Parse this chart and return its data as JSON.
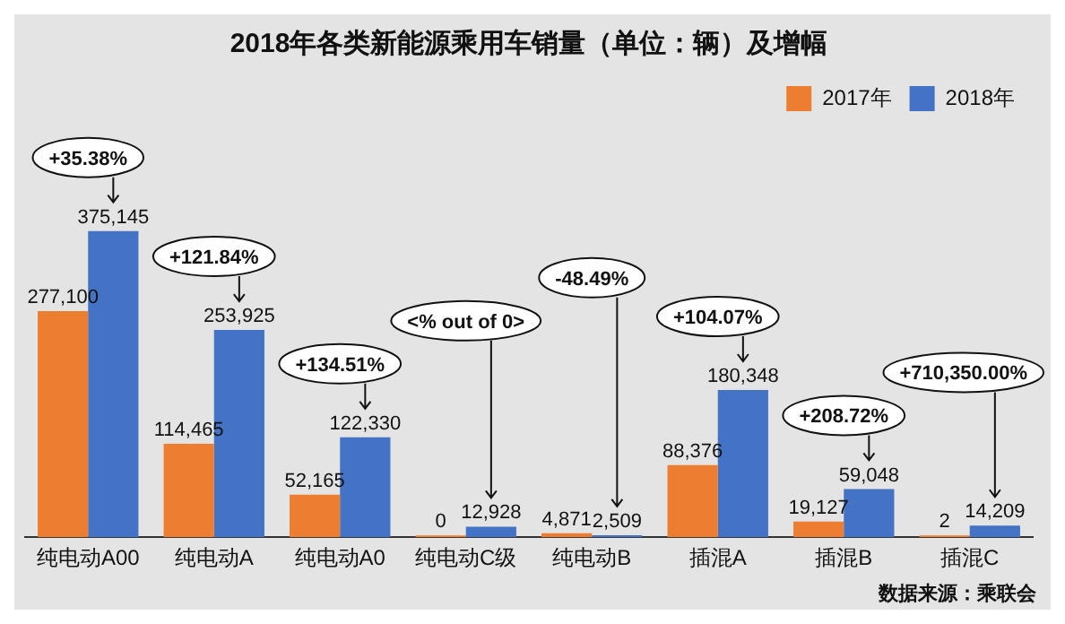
{
  "chart_data": {
    "type": "bar",
    "title": "2018年各类新能源乘用车销量（单位：辆）及增幅",
    "categories": [
      "纯电动A00",
      "纯电动A",
      "纯电动A0",
      "纯电动C级",
      "纯电动B",
      "插混A",
      "插混B",
      "插混C"
    ],
    "series": [
      {
        "name": "2017年",
        "color": "#ed7d31",
        "values": [
          277100,
          114465,
          52165,
          0,
          4871,
          88376,
          19127,
          2
        ],
        "value_labels": [
          "277,100",
          "114,465",
          "52,165",
          "0",
          "4,871",
          "88,376",
          "19,127",
          "2"
        ]
      },
      {
        "name": "2018年",
        "color": "#4472c4",
        "values": [
          375145,
          253925,
          122330,
          12928,
          2509,
          180348,
          59048,
          14209
        ],
        "value_labels": [
          "375,145",
          "253,925",
          "122,330",
          "12,928",
          "2,509",
          "180,348",
          "59,048",
          "14,209"
        ]
      }
    ],
    "legend": "top right",
    "grid": false,
    "annotations": [
      "+35.38%",
      "+121.84%",
      "+134.51%",
      "<% out of 0>",
      "-48.49%",
      "+104.07%",
      "+208.72%",
      "+710,350.00%",
      "数据来源：乘联会"
    ]
  }
}
